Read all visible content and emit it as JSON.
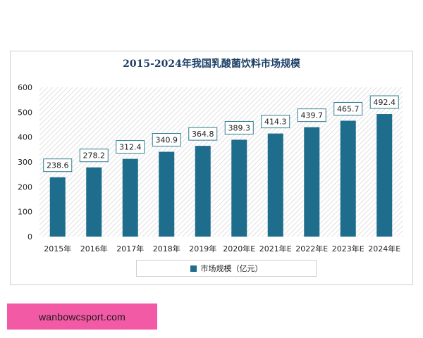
{
  "chart_data": {
    "type": "bar",
    "title": "2015-2024年我国乳酸菌饮料市场规模",
    "categories": [
      "2015年",
      "2016年",
      "2017年",
      "2018年",
      "2019年",
      "2020年E",
      "2021年E",
      "2022年E",
      "2023年E",
      "2024年E"
    ],
    "series": [
      {
        "name": "市场规模（亿元）",
        "values": [
          238.6,
          278.2,
          312.4,
          340.9,
          364.8,
          389.3,
          414.3,
          439.7,
          465.7,
          492.4
        ],
        "color": "#1f6d8c"
      }
    ],
    "ylim": [
      0,
      600
    ],
    "yticks": [
      0,
      100,
      200,
      300,
      400,
      500,
      600
    ],
    "data_labels": [
      "238.6",
      "278.2",
      "312.4",
      "340.9",
      "364.8",
      "389.3",
      "414.3",
      "439.7",
      "465.7",
      "492.4"
    ],
    "legend_position": "bottom",
    "background": "diagonal-hatch",
    "xlabel": "",
    "ylabel": ""
  },
  "watermark": {
    "text": "wanbowcsport.com",
    "background": "#f25aa6"
  }
}
